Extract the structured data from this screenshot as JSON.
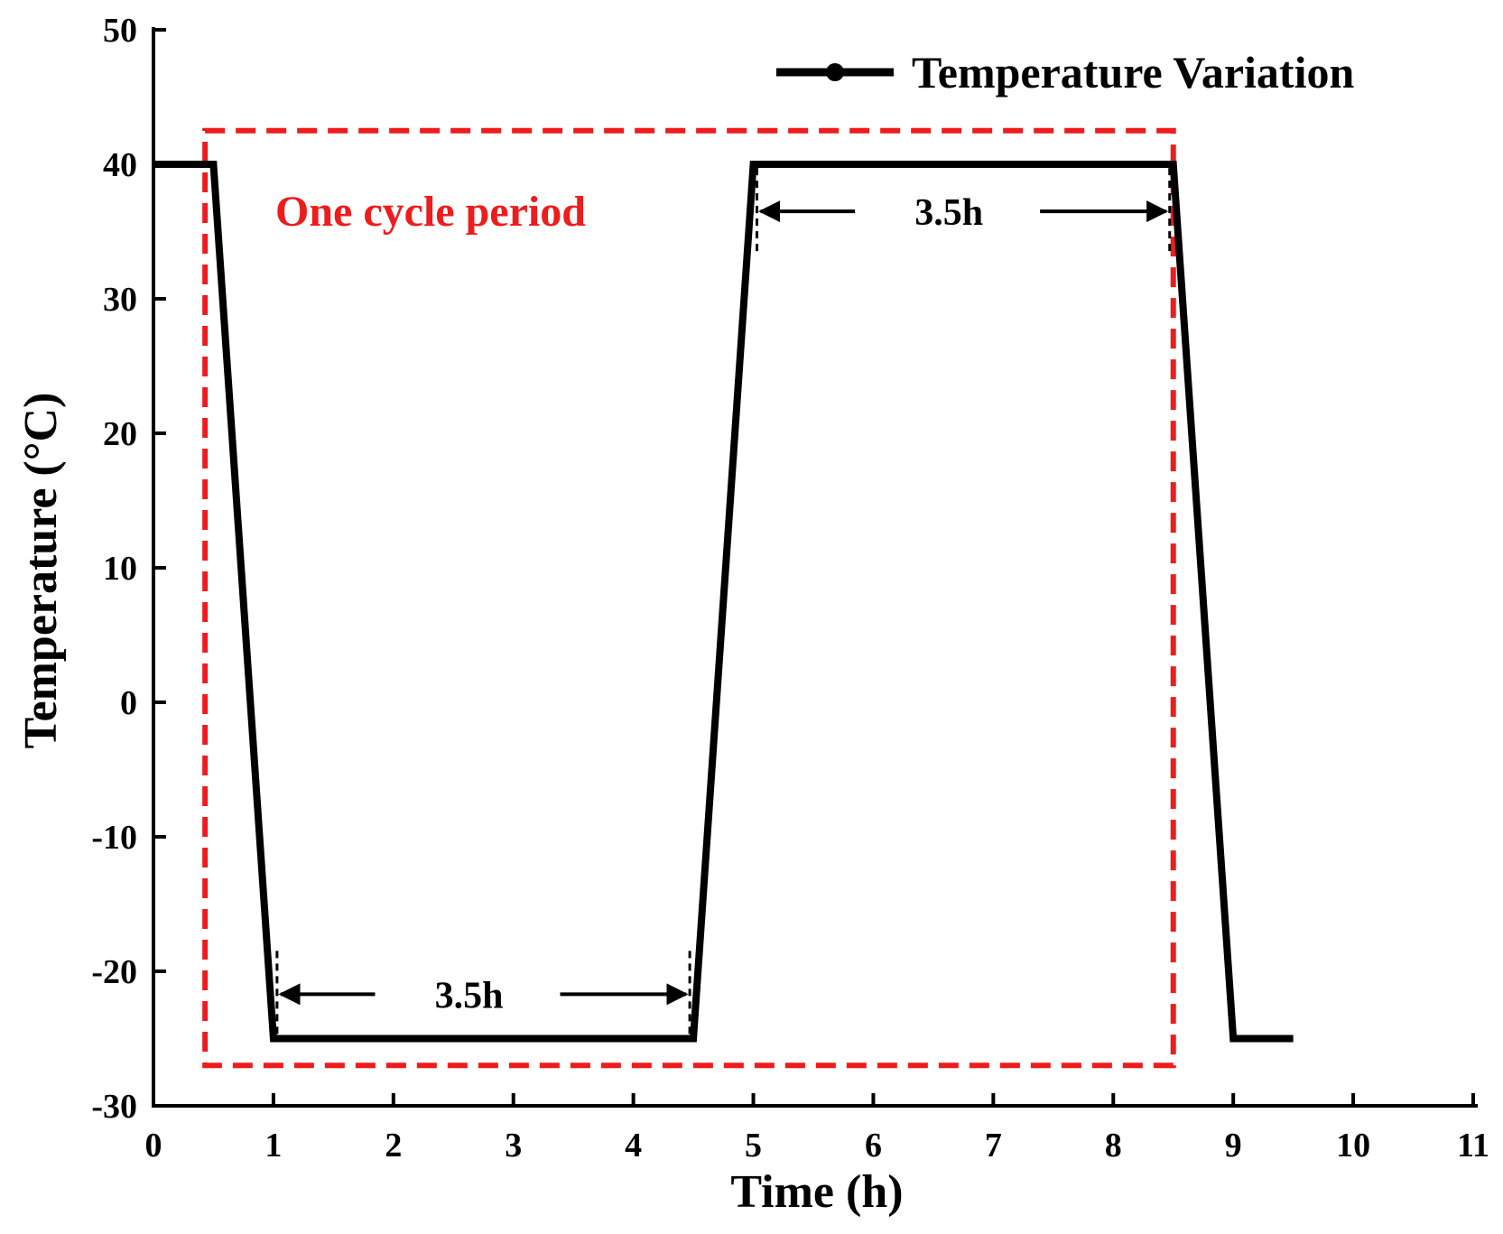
{
  "chart_data": {
    "type": "line",
    "title": "",
    "xlabel": "Time (h)",
    "ylabel": "Temperature (°C)",
    "xlim": [
      0,
      11
    ],
    "ylim": [
      -30,
      50
    ],
    "xticks": [
      "0",
      "1",
      "2",
      "3",
      "4",
      "5",
      "6",
      "7",
      "8",
      "9",
      "10",
      "11"
    ],
    "yticks": [
      "-30",
      "-20",
      "-10",
      "0",
      "10",
      "20",
      "30",
      "40",
      "50"
    ],
    "grid": false,
    "legend_position": "top-right",
    "series": [
      {
        "name": "Temperature Variation",
        "color": "#000000",
        "x": [
          0,
          0.5,
          1,
          4.5,
          5,
          8.5,
          9,
          9.5
        ],
        "y": [
          40,
          40,
          -25,
          -25,
          40,
          40,
          -25,
          -25
        ]
      }
    ],
    "annotations": {
      "cycle_box": {
        "label": "One cycle period",
        "color": "#ee1c1c",
        "x_range": [
          0.43,
          8.5
        ],
        "y_range": [
          -27,
          42.5
        ]
      },
      "durations": [
        {
          "label": "3.5h",
          "x_start": 1.03,
          "x_end": 4.47,
          "y": -21.7
        },
        {
          "label": "3.5h",
          "x_start": 5.03,
          "x_end": 8.47,
          "y": 36.5
        }
      ]
    }
  }
}
